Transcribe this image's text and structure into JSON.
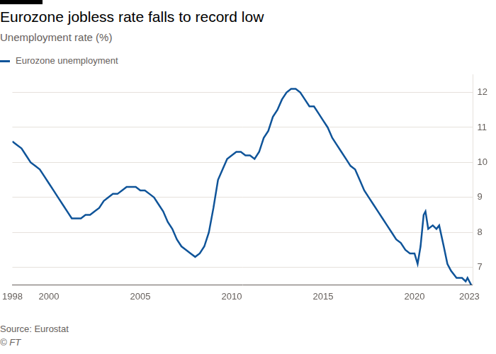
{
  "chart_data": {
    "type": "line",
    "title": "Eurozone jobless rate falls to record low",
    "subtitle": "Unemployment rate (%)",
    "source": "Source: Eurostat",
    "credit": "© FT",
    "x": [
      1998,
      1998.25,
      1998.5,
      1998.75,
      1999,
      1999.25,
      1999.5,
      1999.75,
      2000,
      2000.25,
      2000.5,
      2000.75,
      2001,
      2001.25,
      2001.5,
      2001.75,
      2002,
      2002.25,
      2002.5,
      2002.75,
      2003,
      2003.25,
      2003.5,
      2003.75,
      2004,
      2004.25,
      2004.5,
      2004.75,
      2005,
      2005.25,
      2005.5,
      2005.75,
      2006,
      2006.25,
      2006.5,
      2006.75,
      2007,
      2007.25,
      2007.5,
      2007.75,
      2008,
      2008.25,
      2008.5,
      2008.75,
      2009,
      2009.25,
      2009.5,
      2009.75,
      2010,
      2010.25,
      2010.5,
      2010.75,
      2011,
      2011.25,
      2011.5,
      2011.75,
      2012,
      2012.25,
      2012.5,
      2012.75,
      2013,
      2013.25,
      2013.5,
      2013.75,
      2014,
      2014.25,
      2014.5,
      2014.75,
      2015,
      2015.25,
      2015.5,
      2015.75,
      2016,
      2016.25,
      2016.5,
      2016.75,
      2017,
      2017.25,
      2017.5,
      2017.75,
      2018,
      2018.25,
      2018.5,
      2018.75,
      2019,
      2019.25,
      2019.5,
      2019.75,
      2020,
      2020.17,
      2020.33,
      2020.5,
      2020.6,
      2020.75,
      2021,
      2021.2,
      2021.35,
      2021.6,
      2021.8,
      2022,
      2022.3,
      2022.6,
      2022.8,
      2022.9,
      2023,
      2023.1
    ],
    "series": [
      {
        "name": "Eurozone unemployment",
        "color": "#0f5499",
        "values": [
          10.6,
          10.5,
          10.4,
          10.2,
          10.0,
          9.9,
          9.8,
          9.6,
          9.4,
          9.2,
          9.0,
          8.8,
          8.6,
          8.4,
          8.4,
          8.4,
          8.5,
          8.5,
          8.6,
          8.7,
          8.9,
          9.0,
          9.1,
          9.1,
          9.2,
          9.3,
          9.3,
          9.3,
          9.2,
          9.2,
          9.1,
          9.0,
          8.8,
          8.6,
          8.3,
          8.1,
          7.8,
          7.6,
          7.5,
          7.4,
          7.3,
          7.4,
          7.6,
          8.0,
          8.7,
          9.5,
          9.8,
          10.1,
          10.2,
          10.3,
          10.3,
          10.2,
          10.2,
          10.1,
          10.3,
          10.7,
          10.9,
          11.3,
          11.5,
          11.8,
          12.0,
          12.1,
          12.1,
          12.0,
          11.8,
          11.6,
          11.6,
          11.4,
          11.2,
          11.0,
          10.7,
          10.5,
          10.3,
          10.1,
          9.9,
          9.8,
          9.5,
          9.2,
          9.0,
          8.8,
          8.6,
          8.4,
          8.2,
          8.0,
          7.8,
          7.7,
          7.5,
          7.4,
          7.4,
          7.1,
          7.6,
          8.5,
          8.6,
          8.1,
          8.2,
          8.1,
          8.2,
          7.6,
          7.1,
          6.9,
          6.7,
          6.7,
          6.6,
          6.7,
          6.6,
          6.5
        ]
      }
    ],
    "xlim": [
      1998,
      2023.2
    ],
    "xticks": [
      1998,
      2000,
      2005,
      2010,
      2015,
      2020,
      2023
    ],
    "ylim": [
      6.5,
      12.5
    ],
    "yticks": [
      7,
      8,
      9,
      10,
      11,
      12
    ],
    "grid": true,
    "legend": "top-left"
  }
}
